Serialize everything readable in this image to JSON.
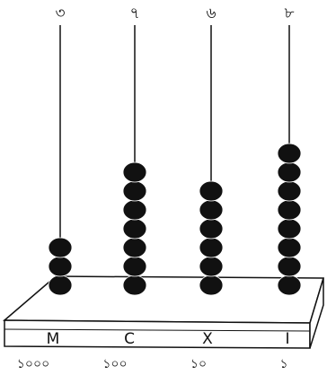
{
  "rods": [
    {
      "digit": "৩",
      "beads": 3,
      "letter": "M",
      "place": "১০০০"
    },
    {
      "digit": "৭",
      "beads": 7,
      "letter": "C",
      "place": "১০০"
    },
    {
      "digit": "৬",
      "beads": 6,
      "letter": "X",
      "place": "১০"
    },
    {
      "digit": "৮",
      "beads": 8,
      "letter": "I",
      "place": "১"
    }
  ]
}
